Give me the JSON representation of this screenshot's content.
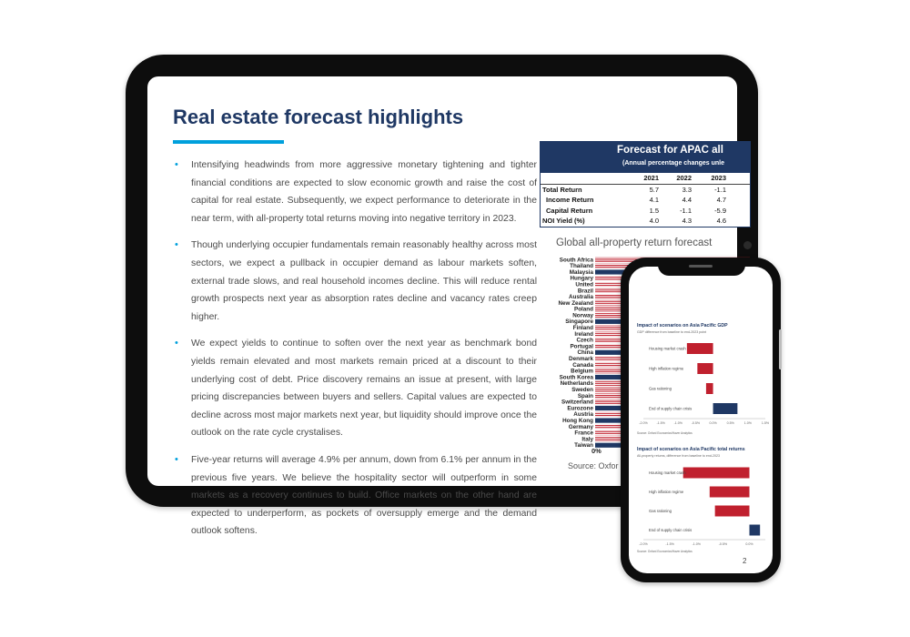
{
  "document": {
    "title": "Real estate forecast highlights",
    "bullets": [
      "Intensifying headwinds from more aggressive monetary tightening and tighter financial conditions are expected to slow economic growth and raise the cost of capital for real estate. Subsequently, we expect performance to deteriorate in the near term, with all-property total returns moving into negative territory in 2023.",
      "Though underlying occupier fundamentals remain reasonably healthy across most sectors, we expect a pullback in occupier demand as labour markets soften, external trade slows, and real household incomes decline. This will reduce rental growth prospects next year as absorption rates decline and vacancy rates creep higher.",
      "We expect yields to continue to soften over the next year as benchmark bond yields remain elevated and most markets remain priced at a discount to their underlying cost of debt. Price discovery remains an issue at present, with large pricing discrepancies between buyers and sellers. Capital values are expected to decline across most major markets next year, but liquidity should improve once the outlook on the rate cycle crystalises.",
      "Five-year returns will average 4.9% per annum, down from 6.1% per annum in the previous five years. We believe the hospitality sector will outperform in some markets as a recovery continues to build. Office markets on the other hand are expected to underperform, as pockets of oversupply emerge and the demand outlook softens."
    ],
    "page_number": "2"
  },
  "forecast_table": {
    "title": "Forecast for APAC all",
    "subtitle": "(Annual percentage changes unle",
    "columns": [
      "2021",
      "2022",
      "2023"
    ],
    "rows": [
      {
        "label": "Total Return",
        "values": [
          "5.7",
          "3.3",
          "-1.1"
        ],
        "indent": false
      },
      {
        "label": "Income Return",
        "values": [
          "4.1",
          "4.4",
          "4.7"
        ],
        "indent": true
      },
      {
        "label": "Capital Return",
        "values": [
          "1.5",
          "-1.1",
          "-5.9"
        ],
        "indent": true
      },
      {
        "label": "NOI Yield (%)",
        "values": [
          "4.0",
          "4.3",
          "4.6"
        ],
        "indent": false
      }
    ]
  },
  "chart_data": [
    {
      "type": "bar",
      "title": "Global all-property return forecast",
      "categories": [
        "South Africa",
        "Thailand",
        "Malaysia",
        "Hungary",
        "United",
        "Brazil",
        "Australia",
        "New Zealand",
        "Poland",
        "Norway",
        "Singapore",
        "Finland",
        "Ireland",
        "Czech",
        "Portugal",
        "China",
        "Denmark",
        "Canada",
        "Belgium",
        "South Korea",
        "Netherlands",
        "Sweden",
        "Spain",
        "Switzerland",
        "Eurozone",
        "Austria",
        "Hong Kong",
        "Germany",
        "France",
        "Italy",
        "Taiwan"
      ],
      "highlight": [
        "Malaysia",
        "Singapore",
        "China",
        "South Korea",
        "Eurozone",
        "Hong Kong",
        "Taiwan"
      ],
      "colors": {
        "striped": "#c0202e",
        "highlight": "#1f3864"
      },
      "tick_labels": [
        "0%"
      ],
      "source": "Source: Oxfor"
    },
    {
      "type": "bar",
      "title": "Impact of scenarios on Asia Pacific GDP",
      "subtitle": "GDP difference from baseline to end-2023 point",
      "categories": [
        "Housing market crash",
        "High inflation regime",
        "Gas rationing",
        "End of supply chain crisis"
      ],
      "values": [
        -0.75,
        -0.45,
        -0.2,
        0.7
      ],
      "xlim": [
        -2.0,
        1.5
      ],
      "tick_labels": [
        "-2.0%",
        "-1.5%",
        "-1.0%",
        "-0.5%",
        "0.0%",
        "0.5%",
        "1.0%",
        "1.5%"
      ],
      "colors": {
        "negative": "#c0202e",
        "positive": "#1f3864"
      },
      "source": "Source: Oxford Economics/Haver Analytics"
    },
    {
      "type": "bar",
      "title": "Impact of scenarios on Asia Pacific total returns",
      "subtitle": "All-property returns, difference from baseline to end-2023",
      "categories": [
        "Housing market crash",
        "High inflation regime",
        "Gas rationing",
        "End of supply chain crisis"
      ],
      "values": [
        -1.25,
        -0.75,
        -0.65,
        0.2
      ],
      "xlim": [
        -2.0,
        0.3
      ],
      "tick_labels": [
        "-2.0%",
        "-1.5%",
        "-1.0%",
        "-0.5%",
        "0.0%"
      ],
      "colors": {
        "negative": "#c0202e",
        "positive": "#1f3864"
      },
      "source": "Source: Oxford Economics/Haver Analytics"
    }
  ]
}
